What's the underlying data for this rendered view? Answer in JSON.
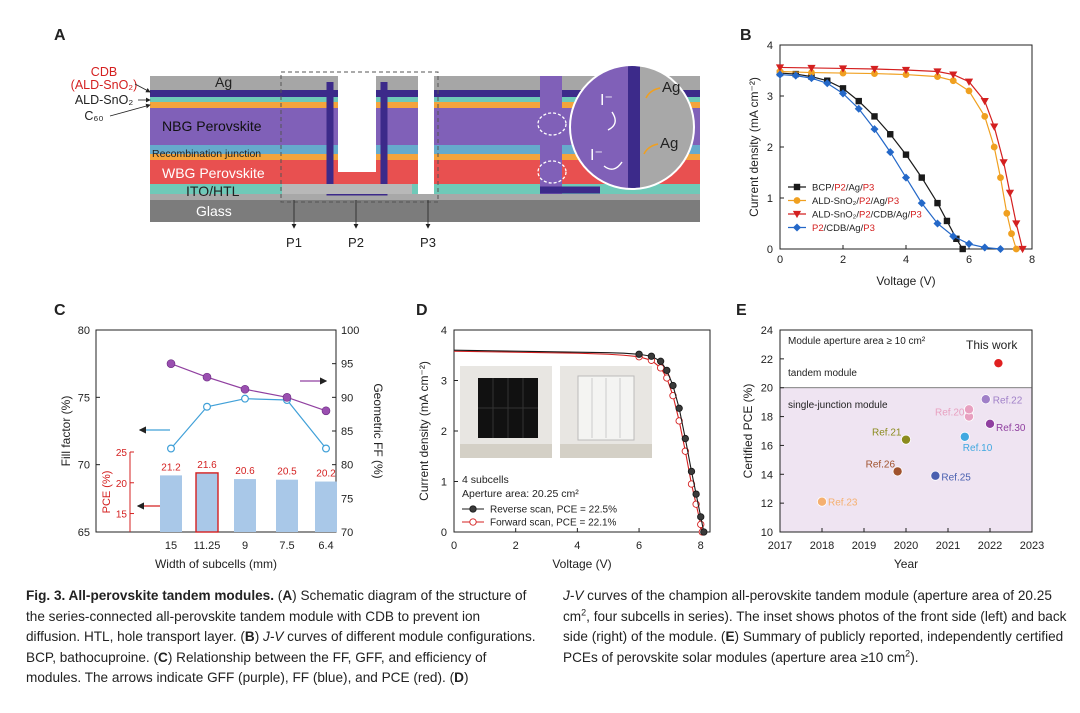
{
  "panels": {
    "A": {
      "letter": "A",
      "layers": {
        "ag": "Ag",
        "nbg": "NBG Perovskite",
        "recomb": "Recombination junction",
        "wbg": "WBG Perovskite",
        "ito": "ITO/HTL",
        "glass": "Glass"
      },
      "left_labels": {
        "cdb": "CDB",
        "cdb_sub": "(ALD-SnO₂)",
        "ald": "ALD-SnO₂",
        "c60": "C₆₀"
      },
      "scribes": [
        "P1",
        "P2",
        "P3"
      ],
      "inset": {
        "ion1": "I⁻",
        "ion2": "I⁻",
        "ag1": "Ag",
        "ag2": "Ag"
      }
    },
    "B": {
      "letter": "B",
      "xlabel": "Voltage (V)",
      "ylabel": "Current density (mA cm⁻²)",
      "legend": [
        {
          "a": "BCP/",
          "b": "P2",
          "c": "/Ag/",
          "d": "P3"
        },
        {
          "a": "ALD-SnO₂/",
          "b": "P2",
          "c": "/Ag/",
          "d": "P3"
        },
        {
          "a": "ALD-SnO₂/",
          "b": "P2",
          "c": "/CDB/Ag/",
          "d": "P3"
        },
        {
          "a": "",
          "b": "P2",
          "c": "/CDB/Ag/",
          "d": "P3"
        }
      ]
    },
    "C": {
      "letter": "C",
      "xlabel": "Width of subcells (mm)",
      "ylabel_left": "Fill factor (%)",
      "ylabel_right": "Geometric FF (%)",
      "pce_label": "PCE (%)"
    },
    "D": {
      "letter": "D",
      "xlabel": "Voltage (V)",
      "ylabel": "Current density (mA cm⁻²)",
      "info": {
        "subcells": "4 subcells",
        "aperture": "Aperture area: 20.25 cm²"
      },
      "legend": [
        "Reverse scan, PCE = 22.5%",
        "Forward scan, PCE = 22.1%"
      ]
    },
    "E": {
      "letter": "E",
      "xlabel": "Year",
      "ylabel": "Certified PCE (%)",
      "header": "Module aperture area ≥ 10 cm²",
      "tandem": "tandem module",
      "single": "single-junction module",
      "this_work": "This work"
    }
  },
  "caption": {
    "title": "Fig. 3. All-perovskite tandem modules.",
    "a_letter": "A",
    "a_text": " Schematic diagram of the structure of the series-connected all-perovskite tandem module with CDB to prevent ion diffusion. HTL, hole transport layer. (",
    "b_letter": "B",
    "jv1": "J-V",
    "b_text": " curves of different module configurations. BCP, bathocuproine. (",
    "c_letter": "C",
    "c_text": ") Relationship between the FF, GFF, and efficiency of modules. The arrows indicate GFF (purple), FF (blue), and PCE (red). (",
    "d_letter": "D",
    "jv2": "J-V",
    "d_text": " curves of the champion all-perovskite tandem module (aperture area of 20.25 cm",
    "sup1": "2",
    "d_text2": ", four subcells in series). The inset shows photos of the front side (left) and back side (right) of the module. (",
    "e_letter": "E",
    "e_text": ") Summary of publicly reported, independently certified PCEs of perovskite solar modules (aperture area ≥10 cm",
    "sup2": "2",
    "e_text2": ")."
  },
  "chart_data": [
    {
      "panel": "B",
      "type": "line",
      "xlabel": "Voltage (V)",
      "ylabel": "Current density (mA cm⁻²)",
      "xlim": [
        0,
        8
      ],
      "ylim": [
        0,
        4
      ],
      "xticks": [
        0,
        2,
        4,
        6,
        8
      ],
      "yticks": [
        0,
        1,
        2,
        3,
        4
      ],
      "colors": [
        "#1a1a1a",
        "#f0a020",
        "#d42020",
        "#2468c8"
      ],
      "markers": [
        "square",
        "circle",
        "triangle",
        "diamond"
      ],
      "series": [
        {
          "name": "BCP/P2/Ag/P3",
          "x": [
            0,
            0.5,
            1,
            1.5,
            2,
            2.5,
            3,
            3.5,
            4,
            4.5,
            5,
            5.3,
            5.6,
            5.8
          ],
          "y": [
            3.45,
            3.43,
            3.38,
            3.3,
            3.15,
            2.9,
            2.6,
            2.25,
            1.85,
            1.4,
            0.9,
            0.55,
            0.2,
            0
          ]
        },
        {
          "name": "ALD-SnO2/P2/Ag/P3",
          "x": [
            0,
            1,
            2,
            3,
            4,
            5,
            5.5,
            6,
            6.5,
            6.8,
            7,
            7.2,
            7.35,
            7.5
          ],
          "y": [
            3.48,
            3.46,
            3.45,
            3.44,
            3.42,
            3.38,
            3.3,
            3.1,
            2.6,
            2.0,
            1.4,
            0.7,
            0.3,
            0
          ]
        },
        {
          "name": "ALD-SnO2/P2/CDB/Ag/P3",
          "x": [
            0,
            1,
            2,
            3,
            4,
            5,
            5.5,
            6,
            6.5,
            6.8,
            7.1,
            7.3,
            7.5,
            7.7
          ],
          "y": [
            3.56,
            3.55,
            3.54,
            3.53,
            3.51,
            3.48,
            3.42,
            3.28,
            2.9,
            2.4,
            1.7,
            1.1,
            0.5,
            0
          ]
        },
        {
          "name": "P2/CDB/Ag/P3",
          "x": [
            0,
            0.5,
            1,
            1.5,
            2,
            2.5,
            3,
            3.5,
            4,
            4.5,
            5,
            5.5,
            6,
            6.5,
            7
          ],
          "y": [
            3.42,
            3.4,
            3.35,
            3.25,
            3.05,
            2.75,
            2.35,
            1.9,
            1.4,
            0.9,
            0.5,
            0.25,
            0.1,
            0.03,
            0
          ]
        }
      ]
    },
    {
      "panel": "C",
      "type": "bar",
      "categories": [
        "15",
        "11.25",
        "9",
        "7.5",
        "6.4"
      ],
      "xlabel": "Width of subcells (mm)",
      "pce": {
        "values": [
          21.2,
          21.6,
          20.6,
          20.5,
          20.2
        ],
        "labels": [
          "21.2",
          "21.6",
          "20.6",
          "20.5",
          "20.2"
        ],
        "ylim": [
          12,
          25
        ],
        "yticks": [
          15,
          20,
          25
        ],
        "highlight": 1
      },
      "ff": {
        "label": "Fill factor (%)",
        "values": [
          71.2,
          74.3,
          74.9,
          74.8,
          71.2
        ],
        "ylim": [
          65,
          80
        ],
        "yticks": [
          65,
          70,
          75,
          80
        ]
      },
      "gff": {
        "label": "Geometric FF (%)",
        "values": [
          95,
          93,
          91.2,
          90,
          88
        ],
        "ylim": [
          70,
          100
        ],
        "yticks": [
          70,
          75,
          80,
          85,
          90,
          95,
          100
        ]
      }
    },
    {
      "panel": "D",
      "type": "line",
      "xlabel": "Voltage (V)",
      "ylabel": "Current density (mA cm⁻²)",
      "xlim": [
        0,
        8.3
      ],
      "ylim": [
        0,
        4
      ],
      "xticks": [
        0,
        2,
        4,
        6,
        8
      ],
      "yticks": [
        0,
        1,
        2,
        3,
        4
      ],
      "series": [
        {
          "name": "Reverse scan, PCE = 22.5%",
          "x": [
            0,
            1,
            2,
            3,
            4,
            5,
            5.5,
            6,
            6.4,
            6.7,
            6.9,
            7.1,
            7.3,
            7.5,
            7.7,
            7.85,
            8.0,
            8.1
          ],
          "y": [
            3.6,
            3.59,
            3.58,
            3.57,
            3.56,
            3.55,
            3.54,
            3.52,
            3.48,
            3.38,
            3.2,
            2.9,
            2.45,
            1.85,
            1.2,
            0.75,
            0.3,
            0
          ]
        },
        {
          "name": "Forward scan, PCE = 22.1%",
          "x": [
            0,
            1,
            2,
            3,
            4,
            5,
            5.5,
            6,
            6.4,
            6.7,
            6.9,
            7.1,
            7.3,
            7.5,
            7.7,
            7.85,
            8.0,
            8.05
          ],
          "y": [
            3.58,
            3.57,
            3.56,
            3.55,
            3.54,
            3.52,
            3.5,
            3.47,
            3.4,
            3.25,
            3.05,
            2.7,
            2.2,
            1.6,
            0.95,
            0.55,
            0.15,
            0
          ]
        }
      ]
    },
    {
      "panel": "E",
      "type": "scatter",
      "xlabel": "Year",
      "ylabel": "Certified PCE (%)",
      "xlim": [
        2017,
        2023
      ],
      "ylim": [
        10,
        24
      ],
      "xticks": [
        2017,
        2018,
        2019,
        2020,
        2021,
        2022,
        2023
      ],
      "yticks": [
        10,
        12,
        14,
        16,
        18,
        20,
        22,
        24
      ],
      "region_split": 20,
      "points": [
        {
          "label": "Ref.23",
          "x": 2018.0,
          "y": 12.1,
          "color": "#f5b070"
        },
        {
          "label": "Ref.26",
          "x": 2019.8,
          "y": 14.2,
          "color": "#a0522d"
        },
        {
          "label": "Ref.21",
          "x": 2020.0,
          "y": 16.4,
          "color": "#8b8b1e"
        },
        {
          "label": "Ref.25",
          "x": 2020.7,
          "y": 13.9,
          "color": "#4a60b0"
        },
        {
          "label": "Ref.20",
          "x": 2021.5,
          "y": 18.0,
          "color": "#e8a0c0"
        },
        {
          "label": "",
          "x": 2021.5,
          "y": 18.5,
          "color": "#e8a0c0"
        },
        {
          "label": "Ref.10",
          "x": 2021.4,
          "y": 16.6,
          "color": "#40a8e0"
        },
        {
          "label": "Ref.22",
          "x": 2021.9,
          "y": 19.2,
          "color": "#a080c8"
        },
        {
          "label": "Ref.30",
          "x": 2022.0,
          "y": 17.5,
          "color": "#9040a0"
        },
        {
          "label": "This work",
          "x": 2022.2,
          "y": 21.7,
          "color": "#e02020"
        }
      ]
    }
  ]
}
